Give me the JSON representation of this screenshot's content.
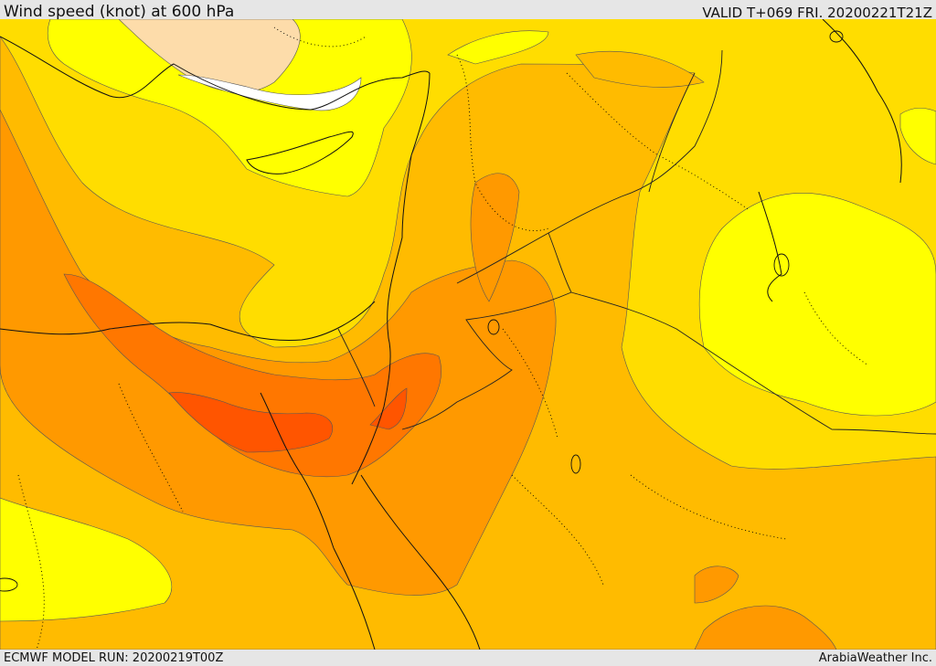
{
  "header": {
    "title": "Wind speed (knot) at 600 hPa",
    "valid": "VALID T+069 FRI. 20200221T21Z"
  },
  "footer": {
    "run": "ECMWF MODEL RUN: 20200219T00Z",
    "credit": "ArabiaWeather Inc."
  },
  "map": {
    "variable": "wind speed",
    "level_hpa": 600,
    "unit": "knot",
    "palette": {
      "calm_white": "#ffffff",
      "light_peach": "#fddcaa",
      "yellow": "#ffff00",
      "gold": "#ffdd00",
      "amber": "#ffbb00",
      "orange": "#ff9900",
      "dark_orange": "#ff7700",
      "red_orange": "#ff5500"
    }
  }
}
